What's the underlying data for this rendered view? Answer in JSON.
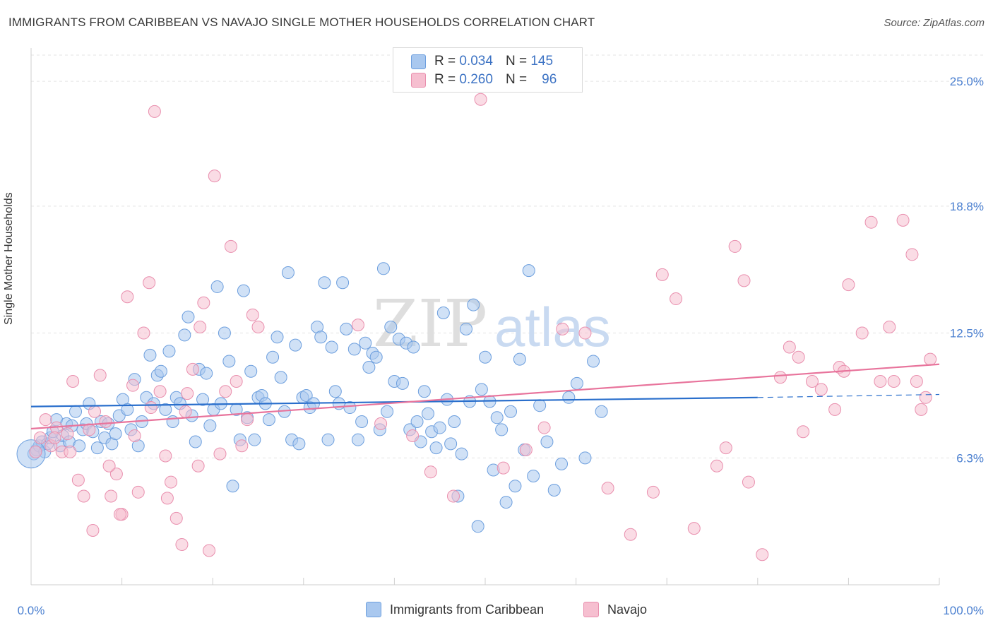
{
  "header": {
    "title": "IMMIGRANTS FROM CARIBBEAN VS NAVAJO SINGLE MOTHER HOUSEHOLDS CORRELATION CHART",
    "source": "Source: ZipAtlas.com"
  },
  "legend_top": {
    "rows": [
      {
        "r_label": "R =",
        "r_value": "0.034",
        "n_label": "N =",
        "n_value": "145"
      },
      {
        "r_label": "R =",
        "r_value": "0.260",
        "n_label": "N =",
        "n_value": "96"
      }
    ]
  },
  "colors": {
    "series_a_fill": "#a9c8ef",
    "series_a_stroke": "#6d9fde",
    "series_a_line": "#2a6fcc",
    "series_b_fill": "#f6bfd0",
    "series_b_stroke": "#e98fae",
    "series_b_line": "#e8749c",
    "grid": "#e3e3e3",
    "tick_label": "#4a7fd0"
  },
  "chart_data": {
    "type": "scatter",
    "title": "IMMIGRANTS FROM CARIBBEAN VS NAVAJO SINGLE MOTHER HOUSEHOLDS CORRELATION CHART",
    "xlabel": "",
    "ylabel": "Single Mother Households",
    "xlim": [
      0,
      100
    ],
    "ylim": [
      0,
      26.3
    ],
    "x_tick_labels": [
      "0.0%",
      "100.0%"
    ],
    "y_ticks": [
      6.3,
      12.5,
      18.8,
      25.0
    ],
    "y_tick_labels": [
      "6.3%",
      "12.5%",
      "18.8%",
      "25.0%"
    ],
    "grid": true,
    "legend_placement": "top-center and bottom",
    "watermark": "ZIPatlas",
    "series": [
      {
        "name": "Immigrants from Caribbean",
        "r": 0.034,
        "n": 145,
        "trend": {
          "x": [
            0,
            80
          ],
          "y": [
            8.85,
            9.3
          ],
          "dashed_to": [
            80,
            100
          ],
          "dashed_y": [
            9.3,
            9.45
          ]
        },
        "points": [
          [
            0.3,
            6.5
          ],
          [
            0.6,
            6.7
          ],
          [
            0.9,
            6.9
          ],
          [
            1.2,
            7.1
          ],
          [
            1.5,
            6.6
          ],
          [
            1.8,
            7.0
          ],
          [
            2.1,
            7.3
          ],
          [
            2.4,
            7.6
          ],
          [
            2.8,
            8.2
          ],
          [
            3.2,
            6.9
          ],
          [
            3.5,
            7.4
          ],
          [
            3.9,
            8.0
          ],
          [
            4.2,
            7.1
          ],
          [
            4.5,
            7.9
          ],
          [
            4.9,
            8.6
          ],
          [
            5.3,
            6.9
          ],
          [
            5.7,
            7.7
          ],
          [
            6.1,
            8.0
          ],
          [
            6.4,
            9.0
          ],
          [
            6.8,
            7.6
          ],
          [
            7.3,
            6.8
          ],
          [
            7.7,
            8.1
          ],
          [
            8.1,
            7.3
          ],
          [
            8.5,
            8.0
          ],
          [
            8.9,
            7.0
          ],
          [
            9.3,
            7.5
          ],
          [
            9.7,
            8.4
          ],
          [
            10.1,
            9.2
          ],
          [
            10.6,
            8.7
          ],
          [
            11.0,
            7.7
          ],
          [
            11.4,
            10.2
          ],
          [
            11.8,
            6.9
          ],
          [
            12.2,
            8.1
          ],
          [
            12.7,
            9.3
          ],
          [
            13.1,
            11.4
          ],
          [
            13.5,
            9.0
          ],
          [
            13.9,
            10.4
          ],
          [
            14.3,
            10.6
          ],
          [
            14.8,
            8.7
          ],
          [
            15.2,
            11.6
          ],
          [
            15.6,
            8.1
          ],
          [
            16.0,
            9.3
          ],
          [
            16.4,
            9.0
          ],
          [
            16.9,
            12.4
          ],
          [
            17.3,
            13.3
          ],
          [
            17.7,
            8.4
          ],
          [
            18.1,
            7.1
          ],
          [
            18.5,
            10.7
          ],
          [
            18.9,
            9.2
          ],
          [
            19.3,
            10.5
          ],
          [
            19.7,
            7.9
          ],
          [
            20.1,
            8.7
          ],
          [
            20.5,
            14.8
          ],
          [
            20.9,
            9.0
          ],
          [
            21.3,
            12.5
          ],
          [
            21.8,
            11.1
          ],
          [
            22.2,
            4.9
          ],
          [
            22.6,
            8.7
          ],
          [
            23.0,
            7.2
          ],
          [
            23.4,
            14.6
          ],
          [
            23.8,
            8.3
          ],
          [
            24.2,
            10.6
          ],
          [
            24.6,
            7.2
          ],
          [
            25.0,
            9.3
          ],
          [
            25.4,
            9.4
          ],
          [
            25.8,
            9.0
          ],
          [
            26.2,
            8.2
          ],
          [
            26.6,
            11.3
          ],
          [
            27.1,
            12.3
          ],
          [
            27.5,
            10.3
          ],
          [
            27.9,
            8.6
          ],
          [
            28.3,
            15.5
          ],
          [
            28.7,
            7.2
          ],
          [
            29.1,
            11.9
          ],
          [
            29.5,
            7.0
          ],
          [
            29.9,
            9.3
          ],
          [
            30.3,
            9.4
          ],
          [
            30.7,
            8.8
          ],
          [
            31.1,
            9.0
          ],
          [
            31.5,
            12.8
          ],
          [
            31.9,
            12.3
          ],
          [
            32.3,
            15.0
          ],
          [
            32.7,
            7.2
          ],
          [
            33.1,
            11.8
          ],
          [
            33.5,
            9.6
          ],
          [
            33.9,
            9.0
          ],
          [
            34.3,
            15.0
          ],
          [
            34.7,
            12.7
          ],
          [
            35.1,
            8.8
          ],
          [
            35.6,
            11.7
          ],
          [
            36.0,
            7.2
          ],
          [
            36.4,
            8.1
          ],
          [
            36.8,
            12.0
          ],
          [
            37.2,
            10.8
          ],
          [
            37.6,
            11.5
          ],
          [
            38.0,
            11.3
          ],
          [
            38.4,
            7.7
          ],
          [
            38.8,
            15.7
          ],
          [
            39.2,
            8.6
          ],
          [
            39.6,
            12.8
          ],
          [
            40.0,
            10.1
          ],
          [
            40.5,
            12.2
          ],
          [
            40.9,
            10.0
          ],
          [
            41.3,
            12.0
          ],
          [
            41.7,
            7.7
          ],
          [
            42.1,
            11.8
          ],
          [
            42.5,
            8.1
          ],
          [
            42.9,
            7.1
          ],
          [
            43.3,
            9.6
          ],
          [
            43.7,
            8.5
          ],
          [
            44.1,
            7.6
          ],
          [
            44.6,
            6.8
          ],
          [
            45.0,
            7.8
          ],
          [
            45.4,
            13.5
          ],
          [
            45.8,
            9.2
          ],
          [
            46.2,
            7.0
          ],
          [
            46.6,
            8.1
          ],
          [
            47.0,
            4.4
          ],
          [
            47.4,
            6.5
          ],
          [
            47.9,
            12.7
          ],
          [
            48.3,
            9.1
          ],
          [
            48.7,
            13.9
          ],
          [
            49.2,
            2.9
          ],
          [
            49.6,
            9.7
          ],
          [
            50.0,
            11.3
          ],
          [
            50.5,
            9.1
          ],
          [
            50.9,
            5.7
          ],
          [
            51.3,
            8.3
          ],
          [
            51.8,
            7.7
          ],
          [
            52.3,
            4.1
          ],
          [
            52.8,
            8.6
          ],
          [
            53.3,
            4.9
          ],
          [
            53.8,
            11.2
          ],
          [
            54.3,
            6.7
          ],
          [
            54.8,
            15.6
          ],
          [
            55.3,
            5.4
          ],
          [
            56.0,
            8.9
          ],
          [
            56.8,
            7.1
          ],
          [
            57.6,
            4.7
          ],
          [
            58.4,
            6.0
          ],
          [
            59.2,
            9.3
          ],
          [
            60.1,
            10.0
          ],
          [
            61.0,
            6.3
          ],
          [
            61.9,
            11.1
          ],
          [
            62.8,
            8.6
          ]
        ]
      },
      {
        "name": "Navajo",
        "r": 0.26,
        "n": 96,
        "trend": {
          "x": [
            0,
            100
          ],
          "y": [
            7.75,
            10.95
          ]
        },
        "points": [
          [
            0.5,
            6.6
          ],
          [
            1.0,
            7.3
          ],
          [
            1.6,
            8.2
          ],
          [
            2.2,
            6.9
          ],
          [
            2.8,
            7.8
          ],
          [
            3.4,
            6.6
          ],
          [
            4.0,
            7.5
          ],
          [
            4.6,
            10.1
          ],
          [
            5.2,
            5.2
          ],
          [
            5.8,
            4.4
          ],
          [
            6.4,
            7.7
          ],
          [
            7.0,
            8.6
          ],
          [
            7.6,
            10.4
          ],
          [
            8.2,
            8.1
          ],
          [
            8.8,
            4.4
          ],
          [
            9.4,
            5.5
          ],
          [
            10.0,
            3.5
          ],
          [
            10.6,
            14.3
          ],
          [
            11.2,
            9.9
          ],
          [
            11.8,
            4.6
          ],
          [
            12.4,
            12.5
          ],
          [
            13.0,
            15.0
          ],
          [
            13.6,
            23.5
          ],
          [
            14.2,
            9.6
          ],
          [
            14.8,
            6.4
          ],
          [
            15.4,
            5.1
          ],
          [
            16.0,
            3.3
          ],
          [
            16.6,
            2.0
          ],
          [
            17.2,
            9.5
          ],
          [
            17.8,
            10.7
          ],
          [
            18.4,
            5.9
          ],
          [
            19.0,
            14.0
          ],
          [
            19.6,
            1.7
          ],
          [
            20.2,
            20.3
          ],
          [
            20.8,
            6.5
          ],
          [
            21.4,
            9.6
          ],
          [
            22.0,
            16.8
          ],
          [
            22.6,
            10.1
          ],
          [
            23.2,
            6.9
          ],
          [
            23.8,
            8.2
          ],
          [
            24.4,
            13.4
          ],
          [
            25.0,
            12.8
          ],
          [
            2.6,
            7.3
          ],
          [
            4.3,
            6.6
          ],
          [
            6.8,
            2.7
          ],
          [
            8.6,
            5.9
          ],
          [
            9.8,
            3.5
          ],
          [
            11.4,
            7.4
          ],
          [
            13.2,
            8.8
          ],
          [
            15.0,
            4.3
          ],
          [
            17.0,
            8.6
          ],
          [
            18.6,
            12.8
          ],
          [
            36.0,
            12.9
          ],
          [
            38.5,
            8.0
          ],
          [
            42.0,
            7.4
          ],
          [
            44.0,
            5.6
          ],
          [
            46.5,
            4.4
          ],
          [
            49.5,
            24.1
          ],
          [
            52.0,
            5.8
          ],
          [
            54.5,
            6.7
          ],
          [
            56.5,
            7.8
          ],
          [
            58.5,
            12.7
          ],
          [
            61.0,
            12.5
          ],
          [
            63.5,
            4.8
          ],
          [
            66.0,
            2.5
          ],
          [
            68.5,
            4.6
          ],
          [
            69.5,
            15.4
          ],
          [
            71.0,
            14.2
          ],
          [
            73.0,
            2.8
          ],
          [
            75.5,
            5.9
          ],
          [
            76.5,
            6.8
          ],
          [
            77.5,
            16.8
          ],
          [
            78.5,
            15.1
          ],
          [
            79.0,
            5.1
          ],
          [
            80.5,
            1.5
          ],
          [
            82.5,
            10.3
          ],
          [
            83.5,
            11.8
          ],
          [
            84.5,
            11.3
          ],
          [
            85.0,
            7.6
          ],
          [
            86.0,
            10.1
          ],
          [
            87.0,
            9.7
          ],
          [
            88.5,
            8.7
          ],
          [
            89.0,
            10.8
          ],
          [
            89.5,
            10.6
          ],
          [
            90.0,
            14.9
          ],
          [
            91.5,
            12.5
          ],
          [
            92.5,
            18.0
          ],
          [
            93.5,
            10.1
          ],
          [
            94.5,
            12.8
          ],
          [
            95.0,
            10.1
          ],
          [
            96.0,
            18.1
          ],
          [
            97.0,
            16.4
          ],
          [
            97.5,
            10.1
          ],
          [
            98.0,
            8.7
          ],
          [
            98.5,
            9.3
          ],
          [
            99.0,
            11.2
          ]
        ]
      }
    ]
  },
  "legend_bottom": {
    "items": [
      {
        "label": "Immigrants from Caribbean"
      },
      {
        "label": "Navajo"
      }
    ]
  },
  "watermark": {
    "zip": "ZIP",
    "atlas": "atlas"
  }
}
